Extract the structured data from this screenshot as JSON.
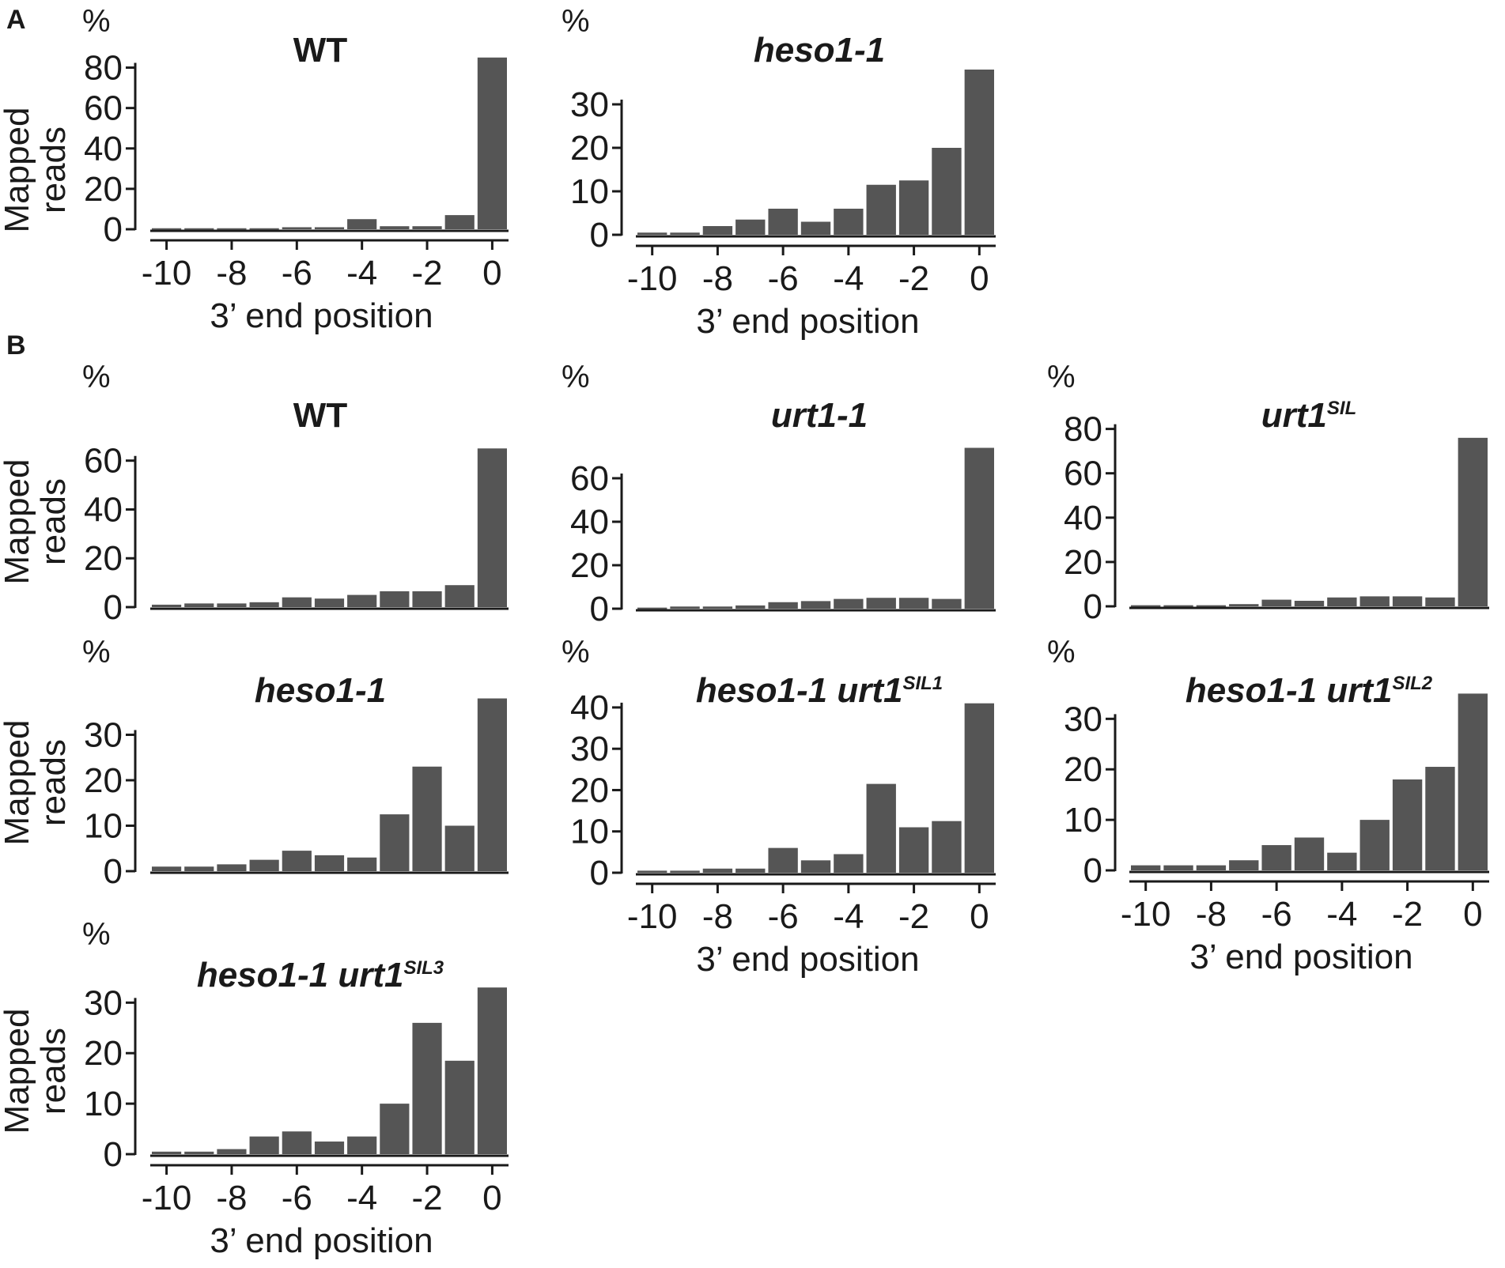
{
  "panel_letters": [
    "A",
    "B"
  ],
  "colors": {
    "bar": "#555555",
    "axis": "#1a1a1a"
  },
  "chart_data": [
    {
      "type": "bar",
      "panel": "A",
      "title": "WT",
      "title_italic": false,
      "title_superscript": "",
      "x": [
        -10,
        -9,
        -8,
        -7,
        -6,
        -5,
        -4,
        -3,
        -2,
        -1,
        0
      ],
      "values": [
        0.5,
        0.5,
        0.5,
        0.5,
        1,
        1,
        5,
        1.5,
        1.5,
        7,
        85
      ],
      "ylabel_lines": [
        "Mapped",
        "reads"
      ],
      "ylabel_unit": "%",
      "yticks": [
        0,
        20,
        40,
        60,
        80
      ],
      "ylim": [
        0,
        90
      ],
      "xticks": [
        "-10",
        "-8",
        "-6",
        "-4",
        "-2",
        "0"
      ],
      "xlabel": "3’ end position"
    },
    {
      "type": "bar",
      "panel": "A",
      "title": "heso1-1",
      "title_italic": true,
      "title_superscript": "",
      "x": [
        -10,
        -9,
        -8,
        -7,
        -6,
        -5,
        -4,
        -3,
        -2,
        -1,
        0
      ],
      "values": [
        0.5,
        0.5,
        2,
        3.5,
        6,
        3,
        6,
        11.5,
        12.5,
        20,
        38
      ],
      "ylabel_lines": [],
      "ylabel_unit": "%",
      "yticks": [
        0,
        10,
        20,
        30
      ],
      "ylim": [
        0,
        40
      ],
      "xticks": [
        "-10",
        "-8",
        "-6",
        "-4",
        "-2",
        "0"
      ],
      "xlabel": "3’ end position"
    },
    {
      "type": "bar",
      "panel": "B",
      "title": "WT",
      "title_italic": false,
      "title_superscript": "",
      "x": [
        -10,
        -9,
        -8,
        -7,
        -6,
        -5,
        -4,
        -3,
        -2,
        -1,
        0
      ],
      "values": [
        1,
        1.5,
        1.5,
        2,
        4,
        3.5,
        5,
        6.5,
        6.5,
        9,
        65
      ],
      "ylabel_lines": [
        "Mapped",
        "reads"
      ],
      "ylabel_unit": "%",
      "yticks": [
        0,
        20,
        40,
        60
      ],
      "ylim": [
        0,
        68
      ],
      "xticks": [],
      "xlabel": ""
    },
    {
      "type": "bar",
      "panel": "B",
      "title": "urt1-1",
      "title_italic": true,
      "title_superscript": "",
      "x": [
        -10,
        -9,
        -8,
        -7,
        -6,
        -5,
        -4,
        -3,
        -2,
        -1,
        0
      ],
      "values": [
        0.5,
        1,
        1,
        1.5,
        3,
        3.5,
        4.5,
        5,
        5,
        4.5,
        74
      ],
      "ylabel_lines": [],
      "ylabel_unit": "%",
      "yticks": [
        0,
        20,
        40,
        60
      ],
      "ylim": [
        0,
        80
      ],
      "xticks": [],
      "xlabel": ""
    },
    {
      "type": "bar",
      "panel": "B",
      "title": "urt1",
      "title_italic": true,
      "title_superscript": "SIL",
      "x": [
        -10,
        -9,
        -8,
        -7,
        -6,
        -5,
        -4,
        -3,
        -2,
        -1,
        0
      ],
      "values": [
        0.5,
        0.5,
        0.5,
        1,
        3,
        2.5,
        4,
        4.5,
        4.5,
        4,
        76
      ],
      "ylabel_lines": [],
      "ylabel_unit": "%",
      "yticks": [
        0,
        20,
        40,
        60,
        80
      ],
      "ylim": [
        0,
        82
      ],
      "xticks": [],
      "xlabel": ""
    },
    {
      "type": "bar",
      "panel": "B",
      "title": "heso1-1",
      "title_italic": true,
      "title_superscript": "",
      "x": [
        -10,
        -9,
        -8,
        -7,
        -6,
        -5,
        -4,
        -3,
        -2,
        -1,
        0
      ],
      "values": [
        1,
        1,
        1.5,
        2.5,
        4.5,
        3.5,
        3,
        12.5,
        23,
        10,
        38
      ],
      "ylabel_lines": [
        "Mapped",
        "reads"
      ],
      "ylabel_unit": "%",
      "yticks": [
        0,
        10,
        20,
        30
      ],
      "ylim": [
        0,
        40
      ],
      "xticks": [],
      "xlabel": ""
    },
    {
      "type": "bar",
      "panel": "B",
      "title": "heso1-1 urt1",
      "title_italic": true,
      "title_superscript": "SIL1",
      "x": [
        -10,
        -9,
        -8,
        -7,
        -6,
        -5,
        -4,
        -3,
        -2,
        -1,
        0
      ],
      "values": [
        0.5,
        0.5,
        1,
        1,
        6,
        3,
        4.5,
        21.5,
        11,
        12.5,
        41
      ],
      "ylabel_lines": [],
      "ylabel_unit": "%",
      "yticks": [
        0,
        10,
        20,
        30,
        40
      ],
      "ylim": [
        0,
        44
      ],
      "xticks": [
        "-10",
        "-8",
        "-6",
        "-4",
        "-2",
        "0"
      ],
      "xlabel": "3’ end position"
    },
    {
      "type": "bar",
      "panel": "B",
      "title": "heso1-1 urt1",
      "title_italic": true,
      "title_superscript": "SIL2",
      "x": [
        -10,
        -9,
        -8,
        -7,
        -6,
        -5,
        -4,
        -3,
        -2,
        -1,
        0
      ],
      "values": [
        1,
        1,
        1,
        2,
        5,
        6.5,
        3.5,
        10,
        18,
        20.5,
        35
      ],
      "ylabel_lines": [],
      "ylabel_unit": "%",
      "yticks": [
        0,
        10,
        20,
        30
      ],
      "ylim": [
        0,
        36
      ],
      "xticks": [
        "-10",
        "-8",
        "-6",
        "-4",
        "-2",
        "0"
      ],
      "xlabel": "3’ end position"
    },
    {
      "type": "bar",
      "panel": "B",
      "title": "heso1-1 urt1",
      "title_italic": true,
      "title_superscript": "SIL3",
      "x": [
        -10,
        -9,
        -8,
        -7,
        -6,
        -5,
        -4,
        -3,
        -2,
        -1,
        0
      ],
      "values": [
        0.5,
        0.5,
        1,
        3.5,
        4.5,
        2.5,
        3.5,
        10,
        26,
        18.5,
        33
      ],
      "ylabel_lines": [
        "Mapped",
        "reads"
      ],
      "ylabel_unit": "%",
      "yticks": [
        0,
        10,
        20,
        30
      ],
      "ylim": [
        0,
        36
      ],
      "xticks": [
        "-10",
        "-8",
        "-6",
        "-4",
        "-2",
        "0"
      ],
      "xlabel": "3’ end position"
    }
  ]
}
